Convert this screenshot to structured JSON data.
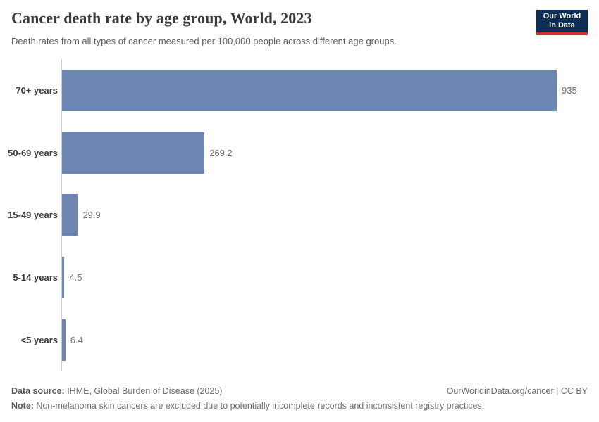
{
  "header": {
    "title": "Cancer death rate by age group, World, 2023",
    "subtitle": "Death rates from all types of cancer measured per 100,000 people across different age groups.",
    "logo": {
      "line1": "Our World",
      "line2": "in Data"
    }
  },
  "chart_data": {
    "type": "bar",
    "orientation": "horizontal",
    "title": "Cancer death rate by age group, World, 2023",
    "categories": [
      "70+ years",
      "50-69 years",
      "15-49 years",
      "5-14 years",
      "<5 years"
    ],
    "values": [
      935,
      269.2,
      29.9,
      4.5,
      6.4
    ],
    "value_labels": [
      "935",
      "269.2",
      "29.9",
      "4.5",
      "6.4"
    ],
    "unit": "deaths per 100,000 people",
    "xlim": [
      0,
      935
    ],
    "grid": false,
    "legend": "none",
    "bar_color": "#6e87b2"
  },
  "footer": {
    "source_label": "Data source:",
    "source_text": " IHME, Global Burden of Disease (2025)",
    "rights": "OurWorldinData.org/cancer | CC BY",
    "note_label": "Note:",
    "note_text": " Non-melanoma skin cancers are excluded due to potentially incomplete records and inconsistent registry practices."
  },
  "colors": {
    "bar": "#6e87b2",
    "logo_background": "#0d2e54",
    "logo_accent": "#d3322b",
    "axis_line": "#cccccc"
  }
}
